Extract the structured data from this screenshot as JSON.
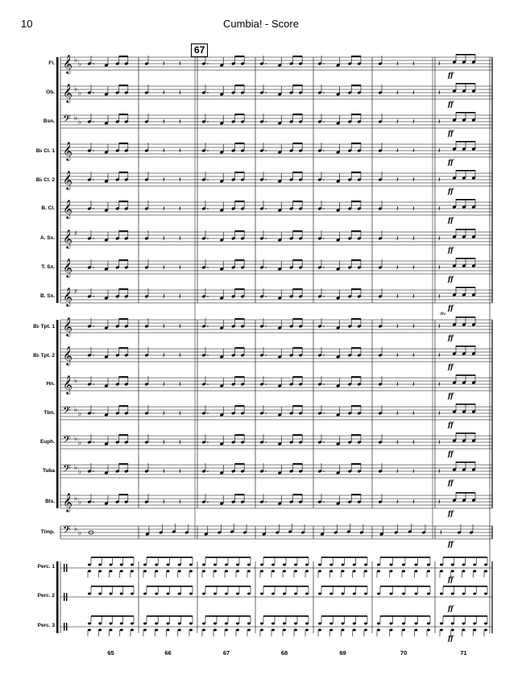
{
  "header": {
    "page_number": "10",
    "title": "Cumbia! - Score"
  },
  "rehearsal_mark": "67",
  "measure_numbers": [
    "65",
    "66",
    "67",
    "68",
    "69",
    "70",
    "71"
  ],
  "expression": {
    "dynamic": "ff",
    "divisi": "div."
  },
  "instruments": [
    {
      "label": "Fl.",
      "clef": "treble",
      "key": "flat2"
    },
    {
      "label": "Ob.",
      "clef": "treble",
      "key": "flat2"
    },
    {
      "label": "Bsn.",
      "clef": "bass",
      "key": "flat2"
    },
    {
      "label": "B♭ Cl. 1",
      "clef": "treble",
      "key": "none"
    },
    {
      "label": "B♭ Cl. 2",
      "clef": "treble",
      "key": "none"
    },
    {
      "label": "B. Cl.",
      "clef": "treble",
      "key": "none"
    },
    {
      "label": "A. Sx.",
      "clef": "treble",
      "key": "sharp1"
    },
    {
      "label": "T. Sx.",
      "clef": "treble",
      "key": "none"
    },
    {
      "label": "B. Sx.",
      "clef": "treble",
      "key": "sharp1"
    },
    {
      "label": "B♭ Tpt. 1",
      "clef": "treble",
      "key": "none"
    },
    {
      "label": "B♭ Tpt. 2",
      "clef": "treble",
      "key": "none"
    },
    {
      "label": "Hn.",
      "clef": "treble",
      "key": "flat1"
    },
    {
      "label": "Tbn.",
      "clef": "bass",
      "key": "flat2"
    },
    {
      "label": "Euph.",
      "clef": "bass",
      "key": "flat2"
    },
    {
      "label": "Tuba",
      "clef": "bass",
      "key": "flat2"
    },
    {
      "label": "Bls.",
      "clef": "treble",
      "key": "flat2"
    },
    {
      "label": "Timp.",
      "clef": "bass",
      "key": "flat2"
    },
    {
      "label": "Perc. 1",
      "clef": "perc",
      "key": "none"
    },
    {
      "label": "Perc. 2",
      "clef": "perc",
      "key": "none"
    },
    {
      "label": "Perc. 3",
      "clef": "perc",
      "key": "none"
    }
  ]
}
